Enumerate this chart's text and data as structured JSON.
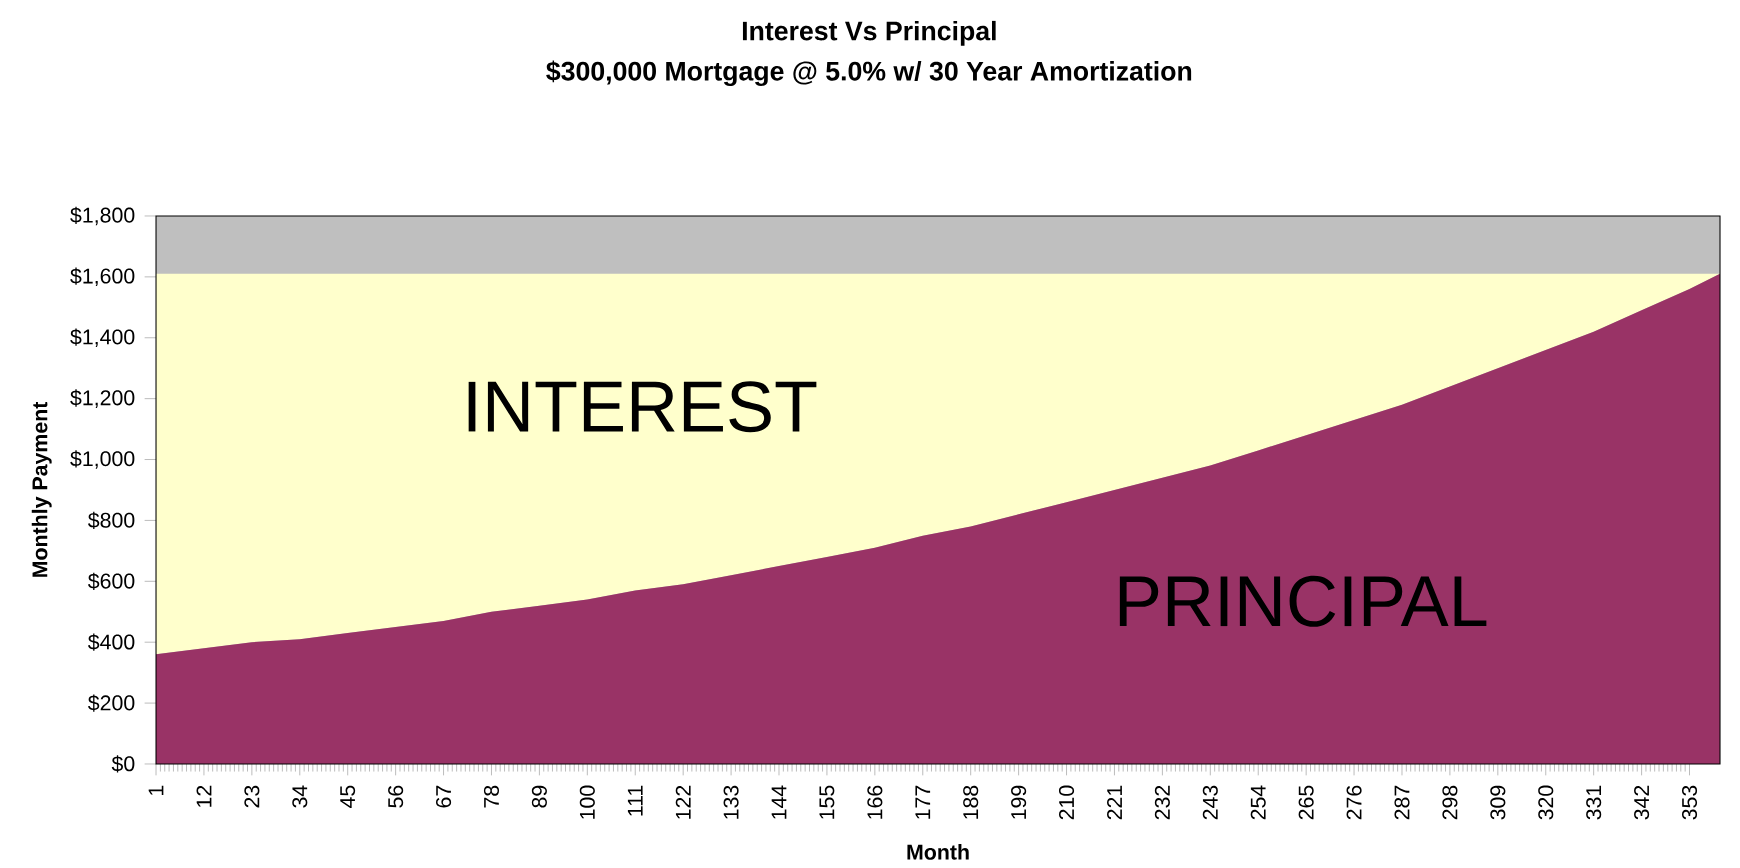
{
  "chart_data": {
    "type": "area",
    "stacked": true,
    "title": "Interest Vs Principal",
    "subtitle": "$300,000 Mortgage @ 5.0% w/ 30 Year Amortization",
    "xlabel": "Month",
    "ylabel": "Monthly Payment",
    "x": [
      1,
      12,
      23,
      34,
      45,
      56,
      67,
      78,
      89,
      100,
      111,
      122,
      133,
      144,
      155,
      166,
      177,
      188,
      199,
      210,
      221,
      232,
      243,
      254,
      265,
      276,
      287,
      298,
      309,
      320,
      331,
      342,
      353,
      360
    ],
    "series": [
      {
        "name": "PRINCIPAL",
        "color": "#993366",
        "values": [
          360,
          380,
          400,
          410,
          430,
          450,
          470,
          500,
          520,
          540,
          570,
          590,
          620,
          650,
          680,
          710,
          750,
          780,
          820,
          860,
          900,
          940,
          980,
          1030,
          1080,
          1130,
          1180,
          1240,
          1300,
          1360,
          1420,
          1490,
          1560,
          1610
        ]
      },
      {
        "name": "INTEREST",
        "color": "#ffffcc",
        "values": [
          1250,
          1230,
          1210,
          1200,
          1180,
          1160,
          1140,
          1110,
          1090,
          1070,
          1040,
          1020,
          990,
          960,
          930,
          900,
          860,
          830,
          790,
          750,
          710,
          670,
          630,
          580,
          530,
          480,
          430,
          370,
          310,
          250,
          190,
          120,
          50,
          0
        ]
      }
    ],
    "xlim": [
      1,
      360
    ],
    "xticks": [
      1,
      12,
      23,
      34,
      45,
      56,
      67,
      78,
      89,
      100,
      111,
      122,
      133,
      144,
      155,
      166,
      177,
      188,
      199,
      210,
      221,
      232,
      243,
      254,
      265,
      276,
      287,
      298,
      309,
      320,
      331,
      342,
      353
    ],
    "ylim": [
      0,
      1800
    ],
    "yticks": [
      {
        "value": 0,
        "label": "$0"
      },
      {
        "value": 200,
        "label": "$200"
      },
      {
        "value": 400,
        "label": "$400"
      },
      {
        "value": 600,
        "label": "$600"
      },
      {
        "value": 800,
        "label": "$800"
      },
      {
        "value": 1000,
        "label": "$1,000"
      },
      {
        "value": 1200,
        "label": "$1,200"
      },
      {
        "value": 1400,
        "label": "$1,400"
      },
      {
        "value": 1600,
        "label": "$1,600"
      },
      {
        "value": 1800,
        "label": "$1,800"
      }
    ],
    "grid": false
  }
}
